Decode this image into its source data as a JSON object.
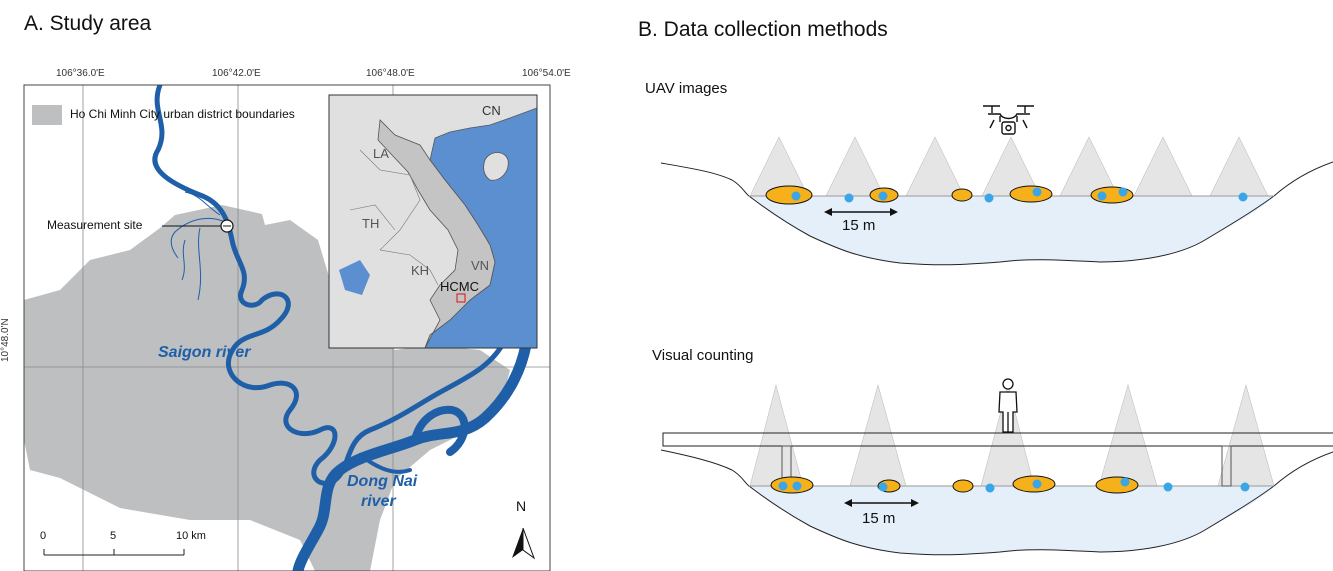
{
  "panel_a": {
    "title": "A. Study area",
    "top_coords": [
      "106°36.0'E",
      "106°42.0'E",
      "106°48.0'E",
      "106°54.0'E"
    ],
    "left_coord": "10°48.0'N",
    "legend_label": "Ho Chi Minh City urban district boundaries",
    "measurement_site": "Measurement site",
    "saigon_river": "Saigon river",
    "dong_nai_river_line1": "Dong Nai",
    "dong_nai_river_line2": "river",
    "north": "N",
    "scale": [
      "0",
      "5",
      "10 km"
    ],
    "inset": {
      "cn": "CN",
      "la": "LA",
      "th": "TH",
      "kh": "KH",
      "vn": "VN",
      "hcmc": "HCMC"
    },
    "colors": {
      "district": "#bdbfc1",
      "water": "#1f5fa8",
      "inset_sea": "#5b8fd0"
    }
  },
  "panel_b": {
    "title": "B. Data collection methods",
    "uav_label": "UAV images",
    "uav_distance": "15 m",
    "visual_label": "Visual counting",
    "visual_distance": "15 m",
    "colors": {
      "water": "#e4effa",
      "patch": "#f5b01a",
      "item": "#3aa6e8",
      "cone": "#d9d9d9"
    }
  }
}
